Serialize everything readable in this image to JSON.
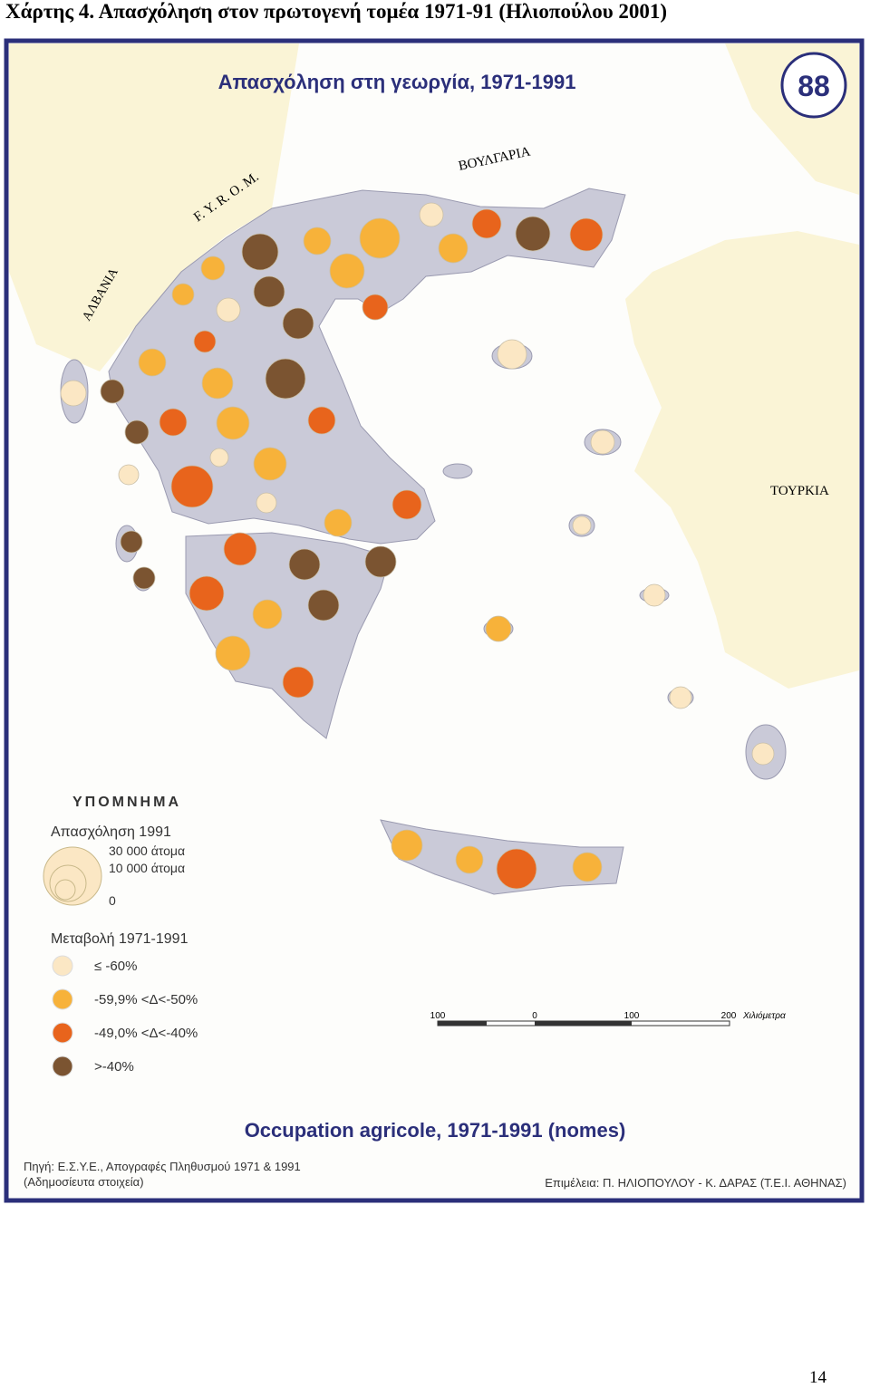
{
  "title": "Χάρτης 4. Απασχόληση στον πρωτογενή τομέα 1971-91 (Ηλιοπούλου 2001)",
  "map": {
    "title": "Απασχόληση στη γεωργία, 1971-1991",
    "badge": "88",
    "labels": {
      "fyrom": "F. Y. R. O. M.",
      "albania": "ΑΛΒΑΝΙΑ",
      "bulgaria": "ΒΟΥΛΓΑΡΙΑ",
      "turkey": "ΤΟΥΡΚΙΑ"
    },
    "legend": {
      "heading": "ΥΠΟΜΝΗΜΑ",
      "size_title": "Απασχόληση 1991",
      "size_labels": [
        "30 000 άτομα",
        "10 000 άτομα",
        "0"
      ],
      "change_title": "Μεταβολή 1971-1991",
      "change_classes": [
        {
          "label": "≤ -60%",
          "color": "#fbe7c4"
        },
        {
          "label": "-59,9% <Δ<-50%",
          "color": "#f7b23a"
        },
        {
          "label": "-49,0% <Δ<-40%",
          "color": "#e8641c"
        },
        {
          "label": ">-40%",
          "color": "#7b5431"
        }
      ]
    },
    "scale": {
      "ticks": [
        "100",
        "0",
        "100",
        "200"
      ],
      "unit": "Χιλιόμετρα"
    },
    "subtitle": "Occupation agricole, 1971-1991 (nomes)",
    "source": [
      "Πηγή: Ε.Σ.Υ.Ε., Απογραφές Πληθυσμού 1971 & 1991",
      "(Αδημοσίευτα στοιχεία)"
    ],
    "credit": "Επιμέλεια: Π. ΗΛΙΟΠΟΥΛΟΥ - Κ. ΔΑΡΑΣ (Τ.Ε.Ι. ΑΘΗΝΑΣ)"
  },
  "page_number": "14"
}
